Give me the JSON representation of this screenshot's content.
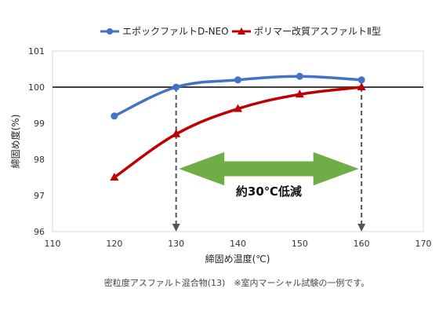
{
  "chart_data": {
    "type": "line",
    "x": [
      120,
      130,
      140,
      150,
      160
    ],
    "series": [
      {
        "name": "エポックファルトD-NEO",
        "color": "#4472c4",
        "marker": "circle",
        "values": [
          99.2,
          100.0,
          100.2,
          100.3,
          100.2
        ]
      },
      {
        "name": "ポリマー改質アスファルトⅡ型",
        "color": "#c00000",
        "marker": "triangle",
        "values": [
          97.5,
          98.7,
          99.4,
          99.8,
          100.0
        ]
      }
    ],
    "xlabel": "締固め温度(℃)",
    "ylabel": "締固め度(%)",
    "xlim": [
      110,
      170
    ],
    "ylim": [
      96,
      101
    ],
    "xticks": [
      110,
      120,
      130,
      140,
      150,
      160,
      170
    ],
    "yticks": [
      96,
      97,
      98,
      99,
      100,
      101
    ],
    "reference_line": 100,
    "markers_x": [
      130,
      160
    ],
    "range_annotation": {
      "from": 130,
      "to": 160,
      "label": "約30℃低減",
      "color": "#70ad47"
    },
    "legend": "top",
    "grid": false,
    "note": "密粒度アスファルト混合物(13)　※室内マーシャル試験の一例です。"
  }
}
